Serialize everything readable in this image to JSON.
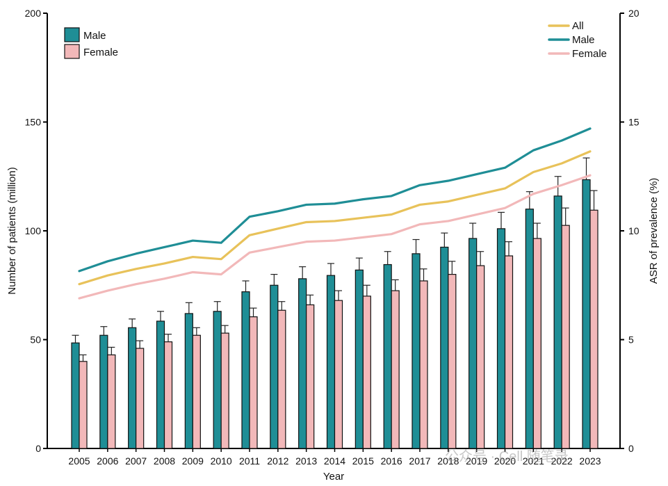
{
  "chart_data": {
    "type": "bar",
    "xlabel": "Year",
    "ylabel_left": "Number of patients (million)",
    "ylabel_right": "ASR of prevalence (%)",
    "ylim_left": [
      0,
      200
    ],
    "ylim_right": [
      0,
      20
    ],
    "yticks_left": [
      "0",
      "50",
      "100",
      "150",
      "200"
    ],
    "yticks_right": [
      "0",
      "5",
      "10",
      "15",
      "20"
    ],
    "categories": [
      "2005",
      "2006",
      "2007",
      "2008",
      "2009",
      "2010",
      "2011",
      "2012",
      "2013",
      "2014",
      "2015",
      "2016",
      "2017",
      "2018",
      "2019",
      "2020",
      "2021",
      "2022",
      "2023"
    ],
    "bar_series": [
      {
        "name": "Male",
        "color": "#1f8e96",
        "values": [
          48.5,
          52,
          55.5,
          58.5,
          62,
          63,
          72,
          75,
          78,
          79.5,
          82,
          84.5,
          89.5,
          92.5,
          96.5,
          101,
          110,
          116,
          123.5
        ],
        "error_upper": [
          52,
          56,
          59.5,
          63,
          67,
          67.5,
          77,
          80,
          83.5,
          85,
          87.5,
          90.5,
          96,
          99,
          103.5,
          108.5,
          118,
          125,
          133.5
        ]
      },
      {
        "name": "Female",
        "color": "#f2b8b9",
        "values": [
          40,
          43,
          46,
          49,
          52,
          53,
          60.5,
          63.5,
          66,
          68,
          70,
          72.5,
          77,
          80,
          84,
          88.5,
          96.5,
          102.5,
          109.5
        ],
        "error_upper": [
          43,
          46.5,
          49.5,
          52.5,
          55.5,
          56.5,
          64.5,
          67.5,
          70.5,
          72.5,
          75,
          77.5,
          82.5,
          86,
          90.5,
          95,
          103.5,
          110.5,
          118.5
        ]
      }
    ],
    "line_series": [
      {
        "name": "All",
        "color": "#e8c25a",
        "values": [
          7.55,
          7.95,
          8.25,
          8.5,
          8.8,
          8.7,
          9.8,
          10.1,
          10.4,
          10.45,
          10.6,
          10.75,
          11.2,
          11.35,
          11.65,
          11.95,
          12.7,
          13.1,
          13.65
        ]
      },
      {
        "name": "Male",
        "color": "#1f8e96",
        "values": [
          8.15,
          8.6,
          8.95,
          9.25,
          9.55,
          9.45,
          10.65,
          10.9,
          11.2,
          11.25,
          11.45,
          11.6,
          12.1,
          12.3,
          12.6,
          12.9,
          13.7,
          14.15,
          14.7
        ]
      },
      {
        "name": "Female",
        "color": "#f2b8b9",
        "values": [
          6.9,
          7.25,
          7.55,
          7.8,
          8.1,
          8.0,
          9.0,
          9.25,
          9.5,
          9.55,
          9.7,
          9.85,
          10.3,
          10.45,
          10.75,
          11.05,
          11.7,
          12.1,
          12.55
        ]
      }
    ],
    "legend_bars": [
      "Male",
      "Female"
    ],
    "legend_lines": [
      "All",
      "Male",
      "Female"
    ],
    "legend_bars_position": "top-left",
    "legend_lines_position": "top-right",
    "grid": false
  },
  "watermark": "公众号 · Cell 随笔录"
}
